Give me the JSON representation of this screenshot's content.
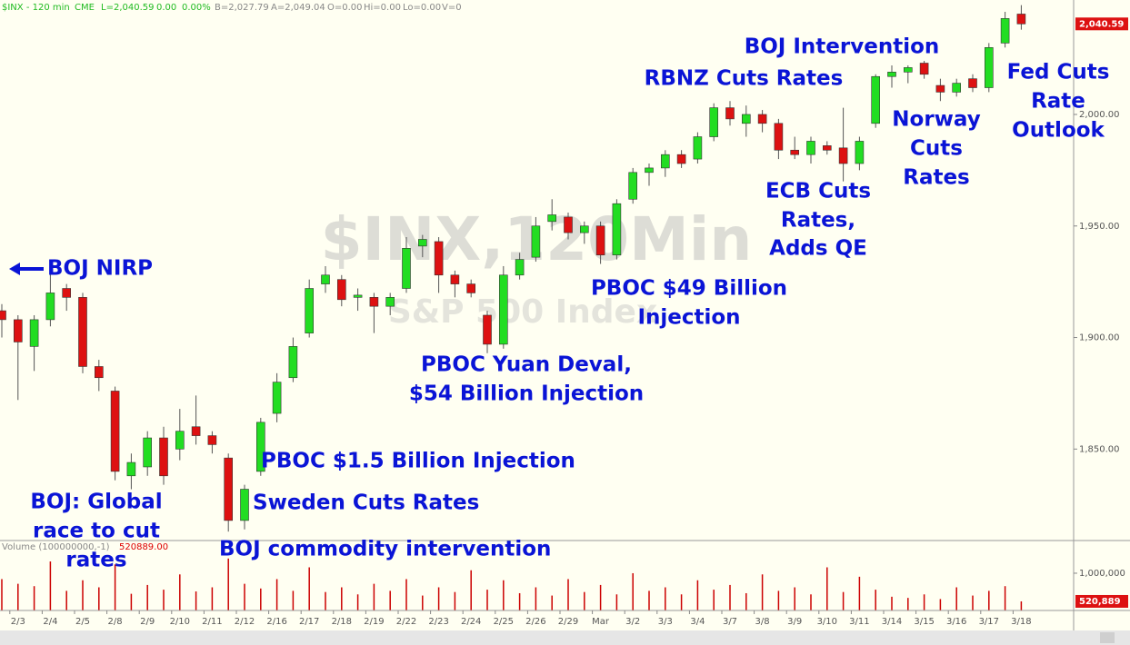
{
  "chart_data": {
    "type": "candlestick",
    "header": {
      "symbol": "$INX - 120 min",
      "exchange": "CME",
      "last": "L=2,040.59",
      "change": "0.00",
      "change_pct": "0.00%",
      "bid": "B=2,027.79",
      "ask": "A=2,049.04",
      "open": "O=0.00",
      "hi": "Hi=0.00",
      "lo": "Lo=0.00",
      "vol": "V=0"
    },
    "watermark": "$INX,120Min",
    "watermark_subtitle": "S&P 500 Index",
    "categories": [
      null,
      "2/3",
      null,
      "2/4",
      null,
      "2/5",
      null,
      "2/8",
      null,
      "2/9",
      null,
      "2/10",
      null,
      "2/11",
      null,
      "2/12",
      null,
      "2/16",
      null,
      "2/17",
      null,
      "2/18",
      null,
      "2/19",
      null,
      "2/22",
      null,
      "2/23",
      null,
      "2/24",
      null,
      "2/25",
      null,
      "2/26",
      null,
      "2/29",
      null,
      "Mar",
      null,
      "3/2",
      null,
      "3/3",
      null,
      "3/4",
      null,
      "3/7",
      null,
      "3/8",
      null,
      "3/9",
      null,
      "3/10",
      null,
      "3/11",
      null,
      "3/14",
      null,
      "3/15",
      null,
      "3/16",
      null,
      "3/17",
      null,
      "3/18"
    ],
    "ohlc": [
      [
        1912,
        1915,
        1900,
        1908
      ],
      [
        1908,
        1910,
        1872,
        1898
      ],
      [
        1896,
        1910,
        1885,
        1908
      ],
      [
        1908,
        1930,
        1905,
        1920
      ],
      [
        1922,
        1924,
        1912,
        1918
      ],
      [
        1918,
        1920,
        1884,
        1887
      ],
      [
        1887,
        1890,
        1876,
        1882
      ],
      [
        1876,
        1878,
        1836,
        1840
      ],
      [
        1838,
        1848,
        1832,
        1844
      ],
      [
        1842,
        1858,
        1838,
        1855
      ],
      [
        1855,
        1860,
        1834,
        1838
      ],
      [
        1850,
        1868,
        1845,
        1858
      ],
      [
        1860,
        1874,
        1852,
        1856
      ],
      [
        1856,
        1858,
        1848,
        1852
      ],
      [
        1846,
        1848,
        1813,
        1818
      ],
      [
        1818,
        1834,
        1814,
        1832
      ],
      [
        1840,
        1864,
        1838,
        1862
      ],
      [
        1866,
        1884,
        1862,
        1880
      ],
      [
        1882,
        1900,
        1880,
        1896
      ],
      [
        1902,
        1926,
        1900,
        1922
      ],
      [
        1924,
        1932,
        1920,
        1928
      ],
      [
        1926,
        1928,
        1914,
        1917
      ],
      [
        1918,
        1922,
        1912,
        1919
      ],
      [
        1918,
        1920,
        1902,
        1914
      ],
      [
        1914,
        1920,
        1910,
        1918
      ],
      [
        1922,
        1945,
        1920,
        1940
      ],
      [
        1941,
        1946,
        1936,
        1944
      ],
      [
        1943,
        1945,
        1920,
        1928
      ],
      [
        1928,
        1930,
        1918,
        1924
      ],
      [
        1924,
        1926,
        1918,
        1920
      ],
      [
        1910,
        1912,
        1893,
        1897
      ],
      [
        1897,
        1932,
        1895,
        1928
      ],
      [
        1928,
        1938,
        1926,
        1935
      ],
      [
        1936,
        1954,
        1934,
        1950
      ],
      [
        1952,
        1962,
        1948,
        1955
      ],
      [
        1954,
        1956,
        1944,
        1947
      ],
      [
        1947,
        1952,
        1942,
        1950
      ],
      [
        1950,
        1952,
        1933,
        1937
      ],
      [
        1937,
        1962,
        1935,
        1960
      ],
      [
        1962,
        1976,
        1960,
        1974
      ],
      [
        1974,
        1978,
        1968,
        1976
      ],
      [
        1976,
        1984,
        1972,
        1982
      ],
      [
        1982,
        1984,
        1976,
        1978
      ],
      [
        1980,
        1992,
        1978,
        1990
      ],
      [
        1990,
        2005,
        1988,
        2003
      ],
      [
        2003,
        2006,
        1995,
        1998
      ],
      [
        1996,
        2004,
        1990,
        2000
      ],
      [
        2000,
        2002,
        1992,
        1996
      ],
      [
        1996,
        1998,
        1980,
        1984
      ],
      [
        1984,
        1990,
        1980,
        1982
      ],
      [
        1982,
        1990,
        1978,
        1988
      ],
      [
        1986,
        1988,
        1982,
        1984
      ],
      [
        1985,
        2003,
        1970,
        1978
      ],
      [
        1978,
        1990,
        1975,
        1988
      ],
      [
        1996,
        2018,
        1994,
        2017
      ],
      [
        2017,
        2022,
        2012,
        2019
      ],
      [
        2019,
        2022,
        2014,
        2021
      ],
      [
        2023,
        2024,
        2016,
        2018
      ],
      [
        2013,
        2016,
        2006,
        2010
      ],
      [
        2010,
        2016,
        2008,
        2014
      ],
      [
        2016,
        2018,
        2010,
        2012
      ],
      [
        2012,
        2032,
        2010,
        2030
      ],
      [
        2032,
        2046,
        2030,
        2043
      ],
      [
        2045,
        2049,
        2038,
        2040.59
      ]
    ],
    "up_color": "#22dd22",
    "down_color": "#dd1111",
    "ylim": [
      1809,
      2051.3
    ],
    "yticks": [
      {
        "value": 1850,
        "label": "1,850.00"
      },
      {
        "value": 1900,
        "label": "1,900.00"
      },
      {
        "value": 1950,
        "label": "1,950.00"
      },
      {
        "value": 2000,
        "label": "2,000.00"
      }
    ],
    "last_price": {
      "value": 2040.59,
      "label": "2,040.59"
    },
    "volume": {
      "title": "Volume (100000000,-1)",
      "readout": {
        "value": 520889,
        "label": "520889.00"
      },
      "color": "#cc0000",
      "values": [
        900000,
        820000,
        780000,
        1200000,
        700000,
        880000,
        760000,
        1150000,
        650000,
        800000,
        720000,
        980000,
        690000,
        760000,
        1250000,
        820000,
        740000,
        900000,
        700000,
        1100000,
        680000,
        760000,
        640000,
        820000,
        700000,
        900000,
        620000,
        760000,
        680000,
        1050000,
        720000,
        880000,
        660000,
        760000,
        620000,
        900000,
        680000,
        800000,
        640000,
        1000000,
        700000,
        760000,
        640000,
        880000,
        720000,
        800000,
        660000,
        980000,
        700000,
        760000,
        640000,
        1100000,
        680000,
        940000,
        720000,
        600000,
        580000,
        640000,
        560000,
        760000,
        620000,
        700000,
        780000,
        520889
      ],
      "ylim": [
        366000,
        1556000
      ],
      "yticks": [
        {
          "value": 1000000,
          "label": "1,000,000"
        }
      ],
      "last": {
        "value": 520889,
        "label": "520,889"
      }
    },
    "annotations": [
      "BOJ NIRP",
      [
        "BOJ: Global",
        "race to cut",
        "rates"
      ],
      "PBOC $1.5 Billion Injection",
      "Sweden Cuts Rates",
      "BOJ commodity intervention",
      [
        "PBOC Yuan Deval,",
        "$54 Billion Injection"
      ],
      [
        "PBOC $49 Billion",
        "Injection"
      ],
      "BOJ Intervention",
      "RBNZ Cuts Rates",
      [
        "ECB Cuts",
        "Rates,",
        "Adds QE"
      ],
      [
        "Norway",
        "Cuts",
        "Rates"
      ],
      [
        "Fed Cuts",
        "Rate",
        "Outlook"
      ]
    ]
  }
}
